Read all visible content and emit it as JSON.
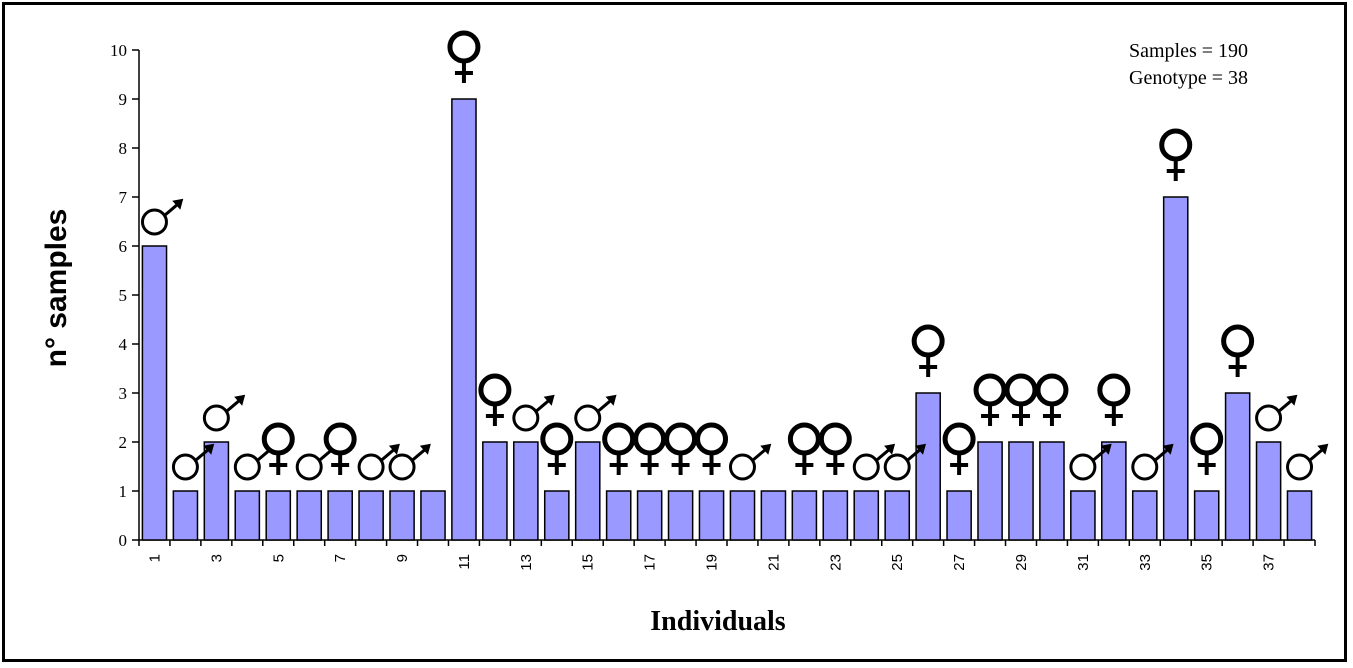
{
  "chart_data": {
    "type": "bar",
    "xlabel": "Individuals",
    "ylabel": "n° samples",
    "ylim": [
      0,
      10
    ],
    "yticks": [
      0,
      1,
      2,
      3,
      4,
      5,
      6,
      7,
      8,
      9,
      10
    ],
    "grid": false,
    "bar_color": "#9999ff",
    "categories": [
      1,
      2,
      3,
      4,
      5,
      6,
      7,
      8,
      9,
      10,
      11,
      12,
      13,
      14,
      15,
      16,
      17,
      18,
      19,
      20,
      21,
      22,
      23,
      24,
      25,
      26,
      27,
      28,
      29,
      30,
      31,
      32,
      33,
      34,
      35,
      36,
      37,
      38
    ],
    "x_tick_labels": [
      "1",
      "3",
      "5",
      "7",
      "9",
      "11",
      "13",
      "15",
      "17",
      "19",
      "21",
      "23",
      "25",
      "27",
      "29",
      "31",
      "33",
      "35",
      "37"
    ],
    "values": [
      6,
      1,
      2,
      1,
      1,
      1,
      1,
      1,
      1,
      1,
      9,
      2,
      2,
      1,
      2,
      1,
      1,
      1,
      1,
      1,
      1,
      1,
      1,
      1,
      1,
      3,
      1,
      2,
      2,
      2,
      1,
      2,
      1,
      7,
      1,
      3,
      2,
      1
    ],
    "sex": [
      "male",
      "male",
      "male",
      "male",
      "female",
      "male",
      "female",
      "male",
      "male",
      "",
      "female",
      "female",
      "male",
      "female",
      "male",
      "female",
      "female",
      "female",
      "female",
      "male",
      "",
      "female",
      "female",
      "male",
      "male",
      "female",
      "female",
      "female",
      "female",
      "female",
      "male",
      "female",
      "male",
      "female",
      "female",
      "female",
      "male",
      "male"
    ],
    "annotations": [
      "Samples = 190",
      "Genotype = 38"
    ]
  }
}
